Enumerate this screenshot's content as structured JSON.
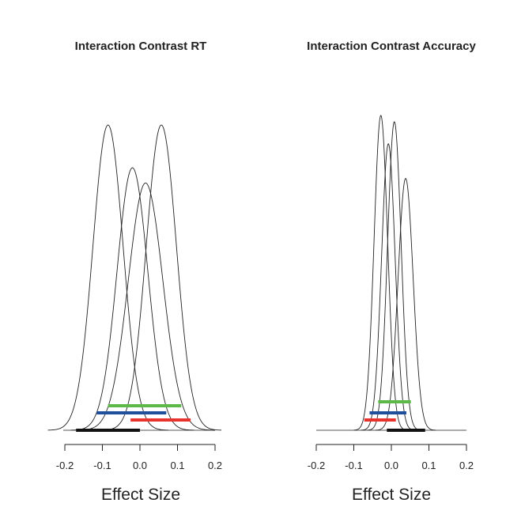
{
  "chart_data": [
    {
      "type": "line",
      "title": "Interaction Contrast RT",
      "xlabel": "Effect Size",
      "ylabel": "",
      "xlim": [
        -0.2,
        0.2
      ],
      "xticks": [
        "-0.2",
        "-0.1",
        "0.0",
        "0.1",
        "0.2"
      ],
      "densities": [
        {
          "mean": -0.085,
          "sd": 0.04,
          "peak": 1.0
        },
        {
          "mean": -0.02,
          "sd": 0.041,
          "peak": 0.86
        },
        {
          "mean": 0.015,
          "sd": 0.046,
          "peak": 0.81
        },
        {
          "mean": 0.057,
          "sd": 0.04,
          "peak": 1.0
        }
      ],
      "intervals": [
        {
          "color": "#5cb947",
          "low": -0.085,
          "high": 0.11
        },
        {
          "color": "#1f4e9c",
          "low": -0.115,
          "high": 0.07
        },
        {
          "color": "#e8322e",
          "low": -0.025,
          "high": 0.135
        },
        {
          "color": "#111111",
          "low": -0.17,
          "high": 0.0
        }
      ]
    },
    {
      "type": "line",
      "title": "Interaction Contrast Accuracy",
      "xlabel": "Effect Size",
      "ylabel": "",
      "xlim": [
        -0.2,
        0.2
      ],
      "xticks": [
        "-0.2",
        "-0.1",
        "0.0",
        "0.1",
        "0.2"
      ],
      "densities": [
        {
          "mean": -0.028,
          "sd": 0.018,
          "peak": 1.0
        },
        {
          "mean": -0.008,
          "sd": 0.018,
          "peak": 0.91
        },
        {
          "mean": 0.008,
          "sd": 0.018,
          "peak": 0.98
        },
        {
          "mean": 0.038,
          "sd": 0.02,
          "peak": 0.8
        }
      ],
      "intervals": [
        {
          "color": "#5cb947",
          "low": -0.035,
          "high": 0.052
        },
        {
          "color": "#1f4e9c",
          "low": -0.058,
          "high": 0.04
        },
        {
          "color": "#e8322e",
          "low": -0.072,
          "high": 0.012
        },
        {
          "color": "#111111",
          "low": -0.012,
          "high": 0.09
        }
      ]
    }
  ]
}
